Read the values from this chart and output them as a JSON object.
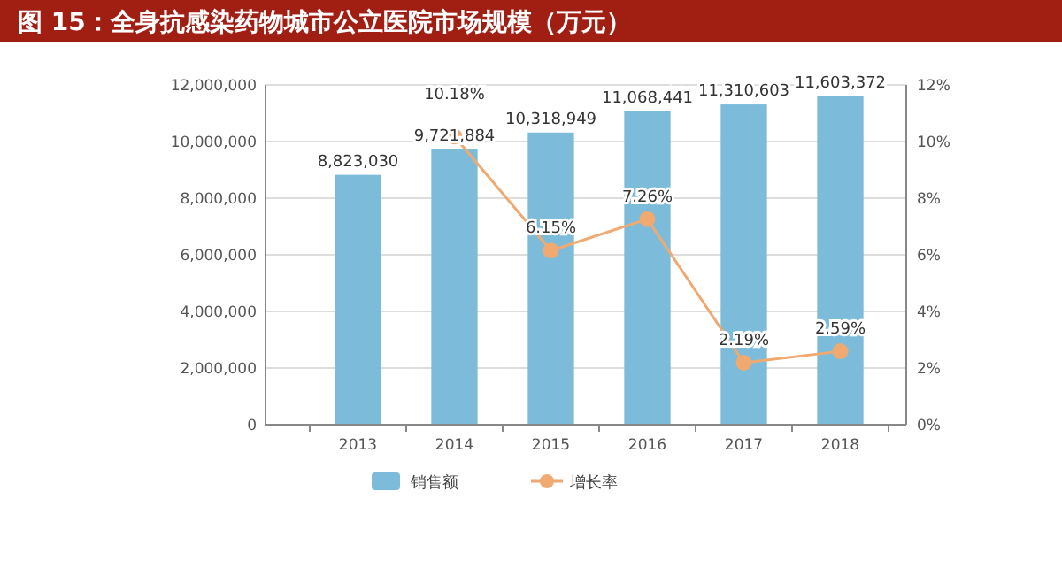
{
  "chart_data": {
    "type": "bar",
    "title": "图 15：全身抗感染药物城市公立医院市场规模（万元）",
    "categories": [
      "2013",
      "2014",
      "2015",
      "2016",
      "2017",
      "2018"
    ],
    "series": [
      {
        "name": "销售额",
        "color": "#7cbcda",
        "values": [
          8823030,
          9721884,
          10318949,
          11068441,
          11310603,
          11603372
        ],
        "value_labels": [
          "8,823,030",
          "9,721,884",
          "10,318,949",
          "11,068,441",
          "11,310,603",
          "11,603,372"
        ]
      },
      {
        "name": "增长率",
        "type": "line",
        "axis": "y2",
        "color": "#f0a971",
        "values": [
          null,
          10.18,
          6.15,
          7.26,
          2.19,
          2.59
        ],
        "value_labels": [
          null,
          "10.18%",
          "6.15%",
          "7.26%",
          "2.19%",
          "2.59%"
        ]
      }
    ],
    "ylim": [
      0,
      12000000
    ],
    "yticks": [
      {
        "value": 0,
        "label": "0"
      },
      {
        "value": 2000000,
        "label": "2,000,000"
      },
      {
        "value": 4000000,
        "label": "4,000,000"
      },
      {
        "value": 6000000,
        "label": "6,000,000"
      },
      {
        "value": 8000000,
        "label": "8,000,000"
      },
      {
        "value": 10000000,
        "label": "10,000,000"
      },
      {
        "value": 12000000,
        "label": "12,000,000"
      }
    ],
    "y2lim": [
      0,
      12
    ],
    "y2ticks": [
      {
        "value": 0,
        "label": "0%"
      },
      {
        "value": 2,
        "label": "2%"
      },
      {
        "value": 4,
        "label": "4%"
      },
      {
        "value": 6,
        "label": "6%"
      },
      {
        "value": 8,
        "label": "8%"
      },
      {
        "value": 10,
        "label": "10%"
      },
      {
        "value": 12,
        "label": "12%"
      }
    ],
    "grid": "y",
    "legend": "bottom",
    "marker": "circle",
    "line_style": "solid"
  }
}
